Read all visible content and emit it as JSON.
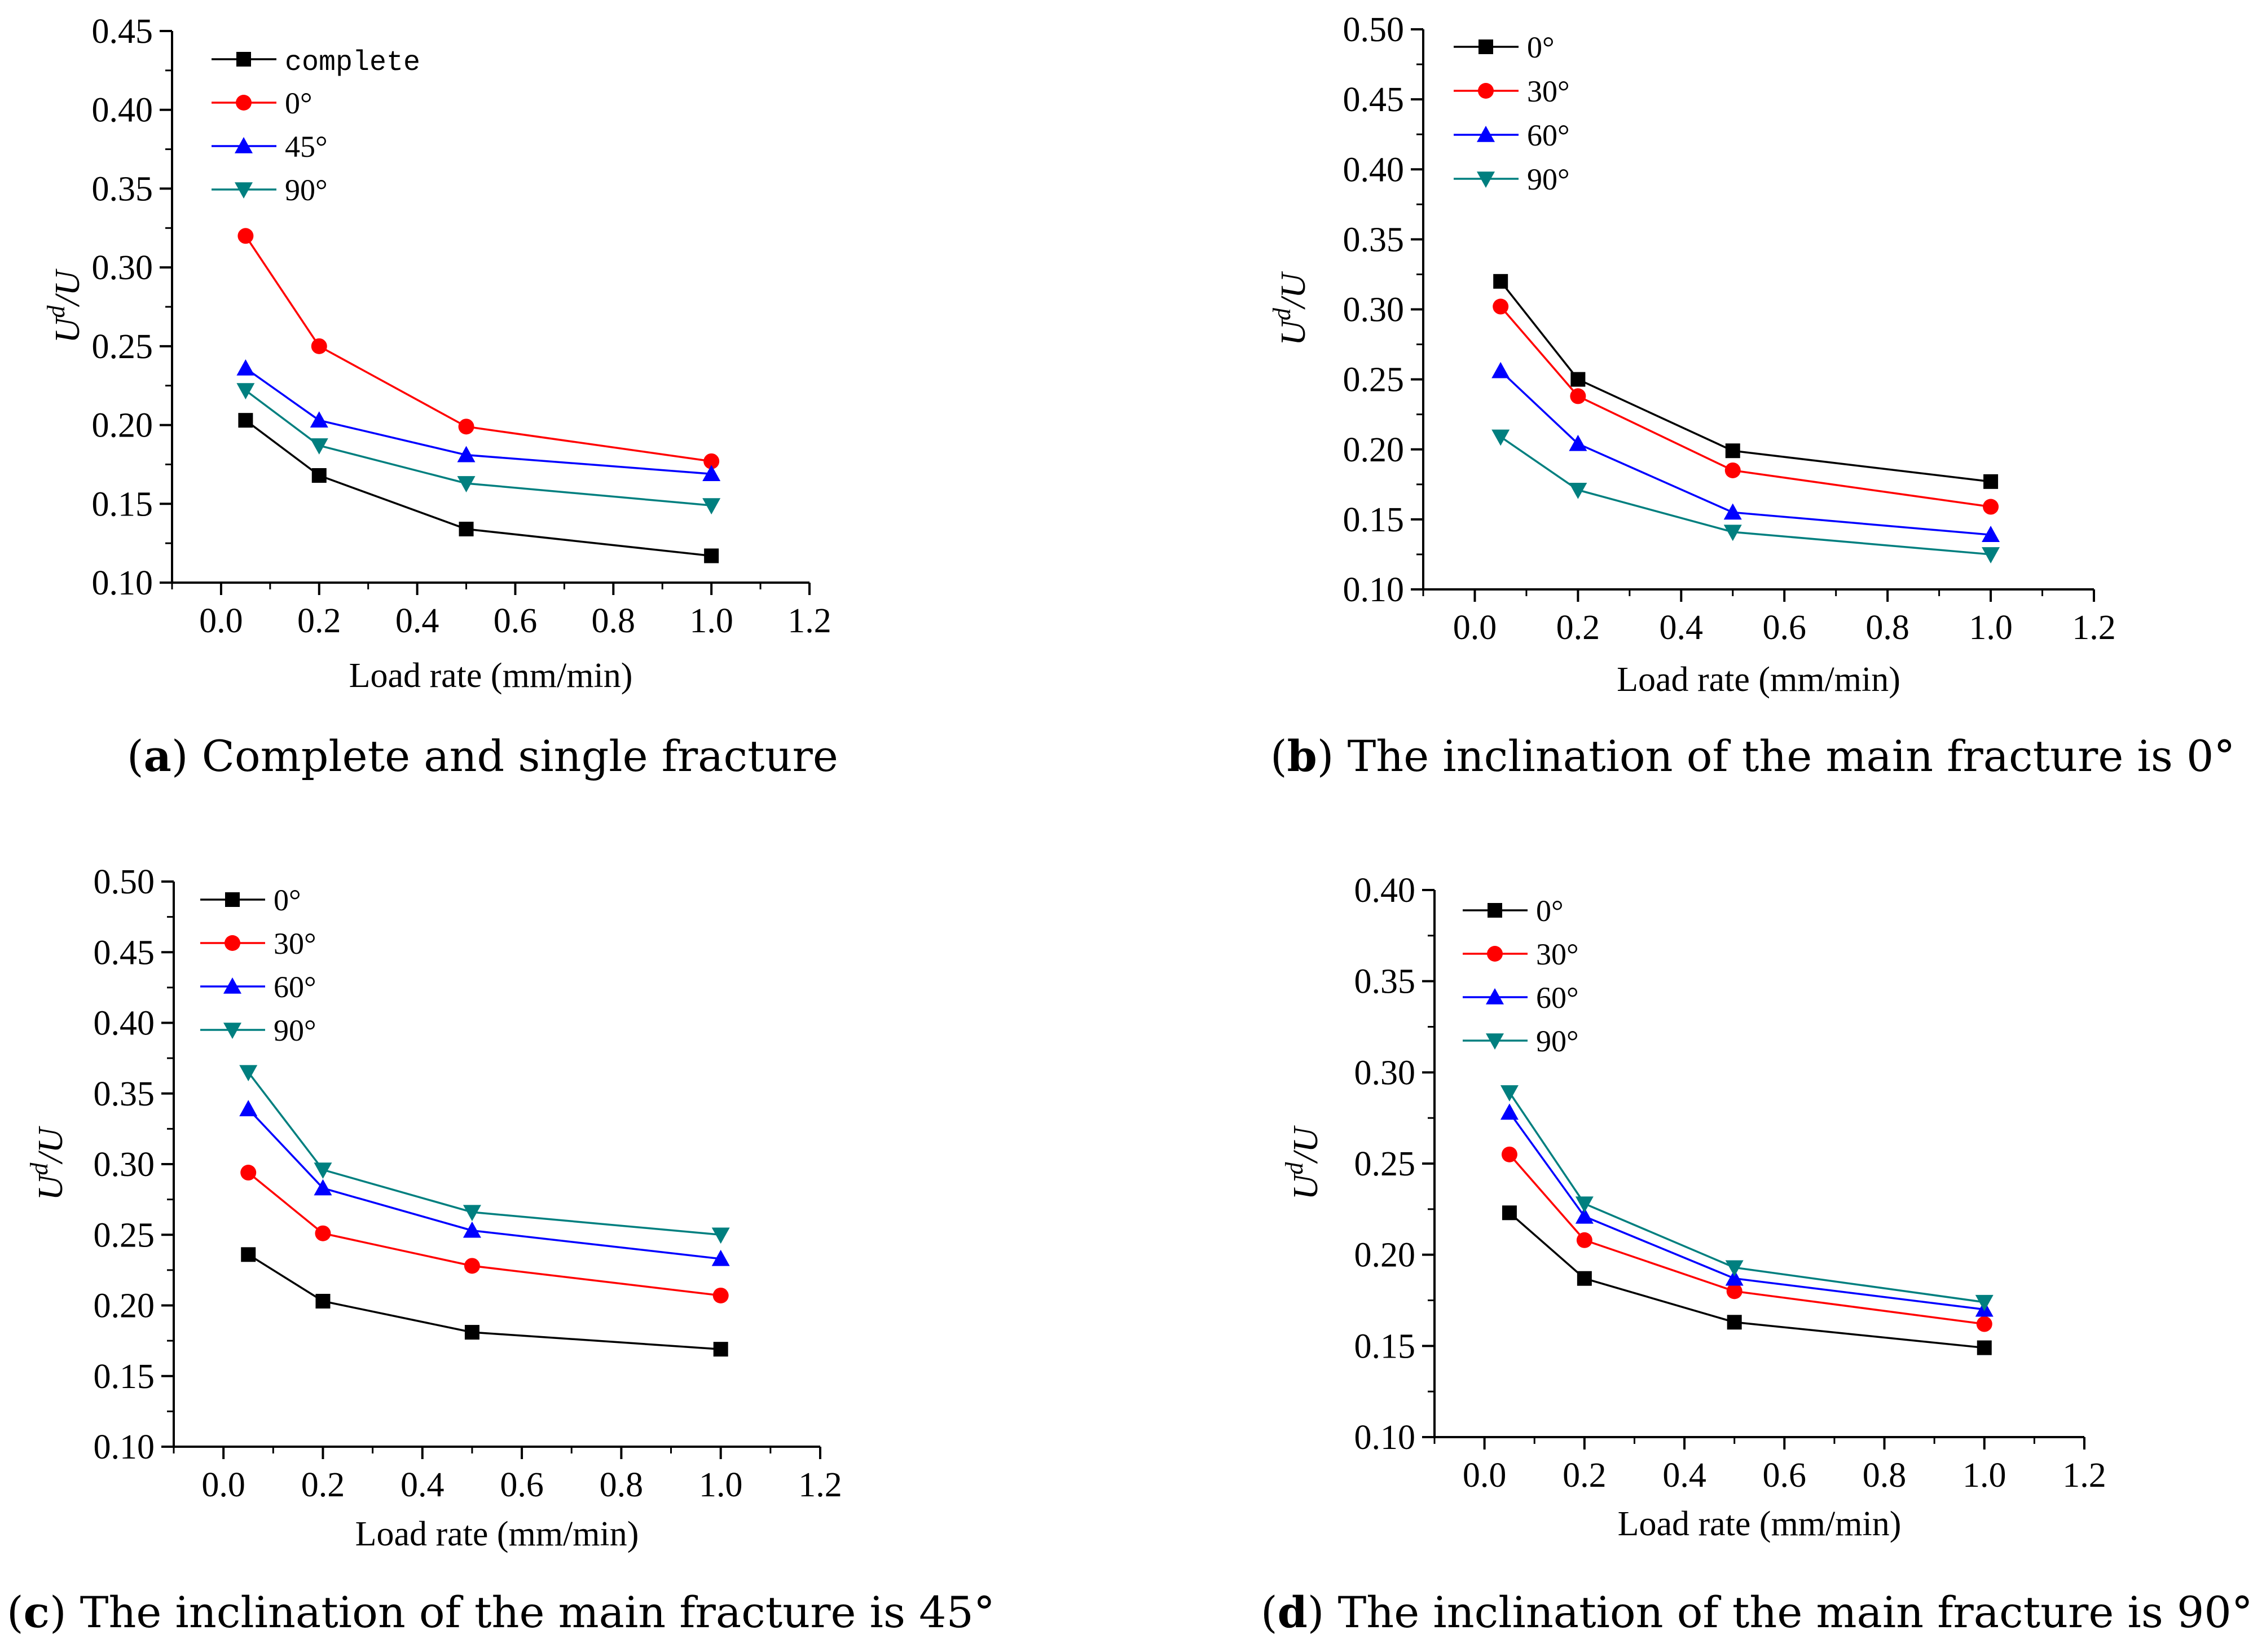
{
  "figure": {
    "panels": [
      {
        "id": "a",
        "caption_letter": "a",
        "caption_text": " Complete and single fracture",
        "ylabel_main": "U",
        "ylabel_sup": "d",
        "ylabel_tail": "/U",
        "xlabel": "Load rate (mm/min)",
        "x_ticks": [
          "0.0",
          "0.2",
          "0.4",
          "0.6",
          "0.8",
          "1.0",
          "1.2"
        ],
        "y_ticks": [
          "0.10",
          "0.15",
          "0.20",
          "0.25",
          "0.30",
          "0.35",
          "0.40",
          "0.45"
        ]
      },
      {
        "id": "b",
        "caption_letter": "b",
        "caption_text": " The inclination of the main fracture is 0°",
        "ylabel_main": "U",
        "ylabel_sup": "d",
        "ylabel_tail": "/U",
        "xlabel": "Load rate (mm/min)",
        "x_ticks": [
          "0.0",
          "0.2",
          "0.4",
          "0.6",
          "0.8",
          "1.0",
          "1.2"
        ],
        "y_ticks": [
          "0.10",
          "0.15",
          "0.20",
          "0.25",
          "0.30",
          "0.35",
          "0.40",
          "0.45",
          "0.50"
        ]
      },
      {
        "id": "c",
        "caption_letter": "c",
        "caption_text": " The inclination of the main fracture is 45°",
        "ylabel_main": "U",
        "ylabel_sup": "d",
        "ylabel_tail": "/U",
        "xlabel": "Load rate (mm/min)",
        "x_ticks": [
          "0.0",
          "0.2",
          "0.4",
          "0.6",
          "0.8",
          "1.0",
          "1.2"
        ],
        "y_ticks": [
          "0.10",
          "0.15",
          "0.20",
          "0.25",
          "0.30",
          "0.35",
          "0.40",
          "0.45",
          "0.50"
        ]
      },
      {
        "id": "d",
        "caption_letter": "d",
        "caption_text": " The inclination of the main fracture is 90°",
        "ylabel_main": "U",
        "ylabel_sup": "d",
        "ylabel_tail": "/U",
        "xlabel": "Load rate (mm/min)",
        "x_ticks": [
          "0.0",
          "0.2",
          "0.4",
          "0.6",
          "0.8",
          "1.0",
          "1.2"
        ],
        "y_ticks": [
          "0.10",
          "0.15",
          "0.20",
          "0.25",
          "0.30",
          "0.35",
          "0.40"
        ]
      }
    ]
  },
  "colors": {
    "black": "#000000",
    "red": "#ff0000",
    "blue": "#0000ff",
    "teal": "#007f7f"
  },
  "chart_data": [
    {
      "type": "line",
      "panel": "a",
      "title": "(a) Complete and single fracture",
      "xlabel": "Load rate (mm/min)",
      "ylabel": "Ud/U",
      "xlim": [
        -0.1,
        1.2
      ],
      "ylim": [
        0.1,
        0.45
      ],
      "x": [
        0.05,
        0.2,
        0.5,
        1.0
      ],
      "legend_position": "top-left",
      "series": [
        {
          "name": "complete",
          "marker": "square",
          "color": "#000000",
          "values": [
            0.203,
            0.168,
            0.134,
            0.117
          ]
        },
        {
          "name": "0°",
          "marker": "circle",
          "color": "#ff0000",
          "values": [
            0.32,
            0.25,
            0.199,
            0.177
          ]
        },
        {
          "name": "45°",
          "marker": "triangle-up",
          "color": "#0000ff",
          "values": [
            0.236,
            0.203,
            0.181,
            0.169
          ]
        },
        {
          "name": "90°",
          "marker": "triangle-down",
          "color": "#007f7f",
          "values": [
            0.222,
            0.187,
            0.163,
            0.149
          ]
        }
      ]
    },
    {
      "type": "line",
      "panel": "b",
      "title": "(b) The inclination of the main fracture is 0°",
      "xlabel": "Load rate (mm/min)",
      "ylabel": "Ud/U",
      "xlim": [
        -0.1,
        1.2
      ],
      "ylim": [
        0.1,
        0.5
      ],
      "x": [
        0.05,
        0.2,
        0.5,
        1.0
      ],
      "legend_position": "top-left",
      "series": [
        {
          "name": "0°",
          "marker": "square",
          "color": "#000000",
          "values": [
            0.32,
            0.25,
            0.199,
            0.177
          ]
        },
        {
          "name": "30°",
          "marker": "circle",
          "color": "#ff0000",
          "values": [
            0.302,
            0.238,
            0.185,
            0.159
          ]
        },
        {
          "name": "60°",
          "marker": "triangle-up",
          "color": "#0000ff",
          "values": [
            0.256,
            0.204,
            0.155,
            0.139
          ]
        },
        {
          "name": "90°",
          "marker": "triangle-down",
          "color": "#007f7f",
          "values": [
            0.209,
            0.171,
            0.141,
            0.125
          ]
        }
      ]
    },
    {
      "type": "line",
      "panel": "c",
      "title": "(c) The inclination of the main fracture is 45°",
      "xlabel": "Load rate (mm/min)",
      "ylabel": "Ud/U",
      "xlim": [
        -0.1,
        1.2
      ],
      "ylim": [
        0.1,
        0.5
      ],
      "x": [
        0.05,
        0.2,
        0.5,
        1.0
      ],
      "legend_position": "top-left",
      "series": [
        {
          "name": "0°",
          "marker": "square",
          "color": "#000000",
          "values": [
            0.236,
            0.203,
            0.181,
            0.169
          ]
        },
        {
          "name": "30°",
          "marker": "circle",
          "color": "#ff0000",
          "values": [
            0.294,
            0.251,
            0.228,
            0.207
          ]
        },
        {
          "name": "60°",
          "marker": "triangle-up",
          "color": "#0000ff",
          "values": [
            0.339,
            0.283,
            0.253,
            0.233
          ]
        },
        {
          "name": "90°",
          "marker": "triangle-down",
          "color": "#007f7f",
          "values": [
            0.365,
            0.296,
            0.266,
            0.25
          ]
        }
      ]
    },
    {
      "type": "line",
      "panel": "d",
      "title": "(d) The inclination of the main fracture is 90°",
      "xlabel": "Load rate (mm/min)",
      "ylabel": "Ud/U",
      "xlim": [
        -0.1,
        1.2
      ],
      "ylim": [
        0.1,
        0.4
      ],
      "x": [
        0.05,
        0.2,
        0.5,
        1.0
      ],
      "legend_position": "top-left",
      "series": [
        {
          "name": "0°",
          "marker": "square",
          "color": "#000000",
          "values": [
            0.223,
            0.187,
            0.163,
            0.149
          ]
        },
        {
          "name": "30°",
          "marker": "circle",
          "color": "#ff0000",
          "values": [
            0.255,
            0.208,
            0.18,
            0.162
          ]
        },
        {
          "name": "60°",
          "marker": "triangle-up",
          "color": "#0000ff",
          "values": [
            0.278,
            0.221,
            0.187,
            0.17
          ]
        },
        {
          "name": "90°",
          "marker": "triangle-down",
          "color": "#007f7f",
          "values": [
            0.289,
            0.228,
            0.193,
            0.174
          ]
        }
      ]
    }
  ]
}
